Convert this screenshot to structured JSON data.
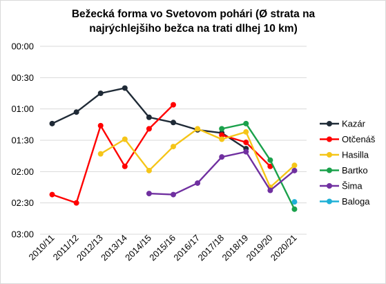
{
  "chart_data": {
    "type": "line",
    "title_lines": [
      "Bežecká forma vo Svetovom pohári (Ø strata na",
      "najrýchlejšiho bežca na trati dlhej 10 km)"
    ],
    "categories": [
      "2010/11",
      "2011/12",
      "2012/13",
      "2013/14",
      "2014/15",
      "2015/16",
      "2016/17",
      "2017/18",
      "2018/19",
      "2019/20",
      "2020/21"
    ],
    "y_tick_labels": [
      "00:00",
      "00:30",
      "01:00",
      "01:30",
      "02:00",
      "02:30",
      "03:00"
    ],
    "y_unit": "seconds",
    "ylim": [
      0,
      180
    ],
    "y_reversed": true,
    "grid": true,
    "legend_position": "right",
    "series": [
      {
        "name": "Kazár",
        "color": "#1f2a36",
        "values": [
          74,
          63,
          45,
          40,
          68,
          73,
          80,
          83,
          98,
          null,
          null
        ]
      },
      {
        "name": "Otčenáš",
        "color": "#ff0000",
        "values": [
          142,
          150,
          76,
          115,
          79,
          56,
          null,
          85,
          92,
          115,
          null
        ]
      },
      {
        "name": "Hasilla",
        "color": "#f5c518",
        "values": [
          null,
          null,
          103,
          89,
          119,
          96,
          79,
          89,
          82,
          135,
          114
        ]
      },
      {
        "name": "Bartko",
        "color": "#1aa14b",
        "values": [
          null,
          null,
          null,
          null,
          null,
          null,
          null,
          79,
          74,
          109,
          156
        ]
      },
      {
        "name": "Šima",
        "color": "#7030a0",
        "values": [
          null,
          null,
          null,
          null,
          141,
          142,
          131,
          106,
          101,
          138,
          119
        ]
      },
      {
        "name": "Baloga",
        "color": "#1fb0d6",
        "values": [
          null,
          null,
          null,
          null,
          null,
          null,
          null,
          null,
          null,
          null,
          149
        ]
      }
    ]
  }
}
